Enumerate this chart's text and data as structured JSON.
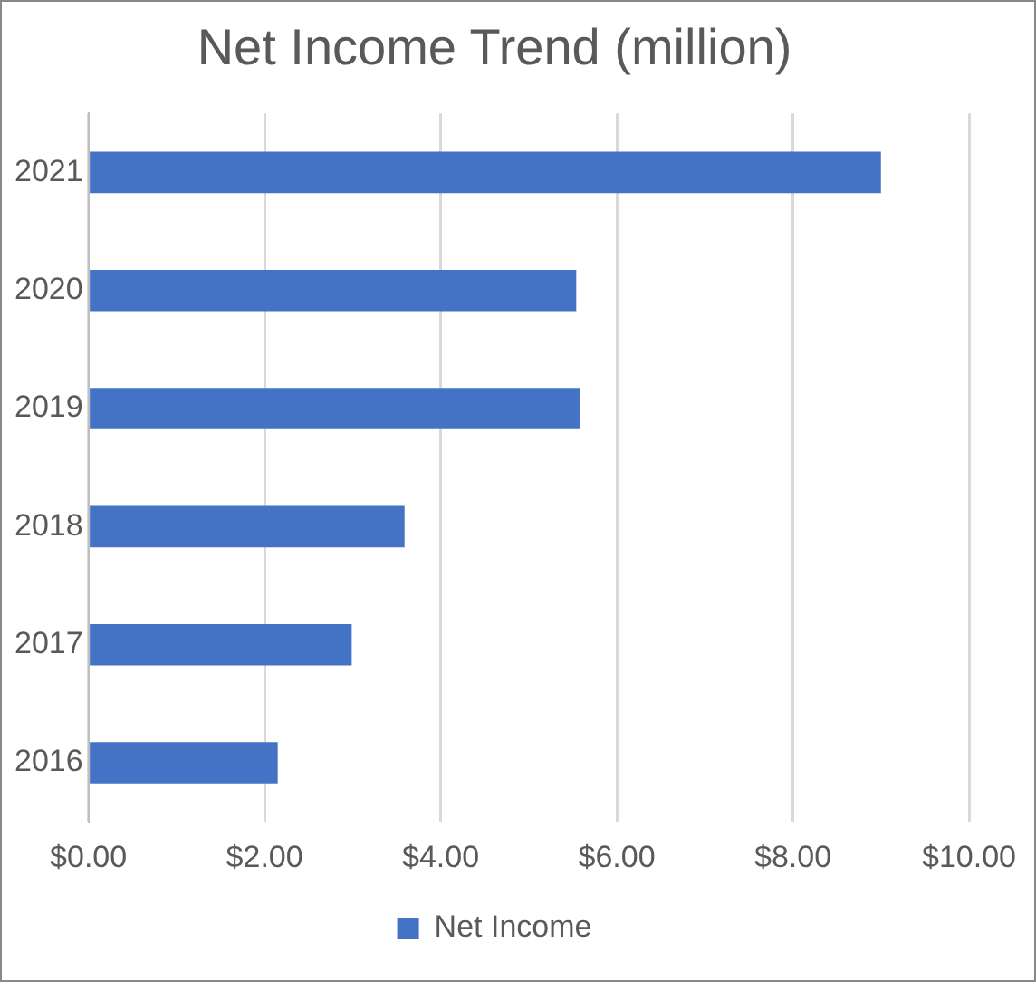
{
  "chart_data": {
    "type": "bar",
    "orientation": "horizontal",
    "title": "Net Income Trend (million)",
    "categories": [
      "2021",
      "2020",
      "2019",
      "2018",
      "2017",
      "2016"
    ],
    "series": [
      {
        "name": "Net Income",
        "color": "#4472c4",
        "values": [
          9.0,
          5.54,
          5.58,
          3.59,
          2.99,
          2.15
        ]
      }
    ],
    "xlim": [
      0,
      10
    ],
    "xticks": [
      {
        "value": 0,
        "label": "$0.00"
      },
      {
        "value": 2,
        "label": "$2.00"
      },
      {
        "value": 4,
        "label": "$4.00"
      },
      {
        "value": 6,
        "label": "$6.00"
      },
      {
        "value": 8,
        "label": "$8.00"
      },
      {
        "value": 10,
        "label": "$10.00"
      }
    ],
    "grid": "x",
    "legend": "bottom"
  }
}
